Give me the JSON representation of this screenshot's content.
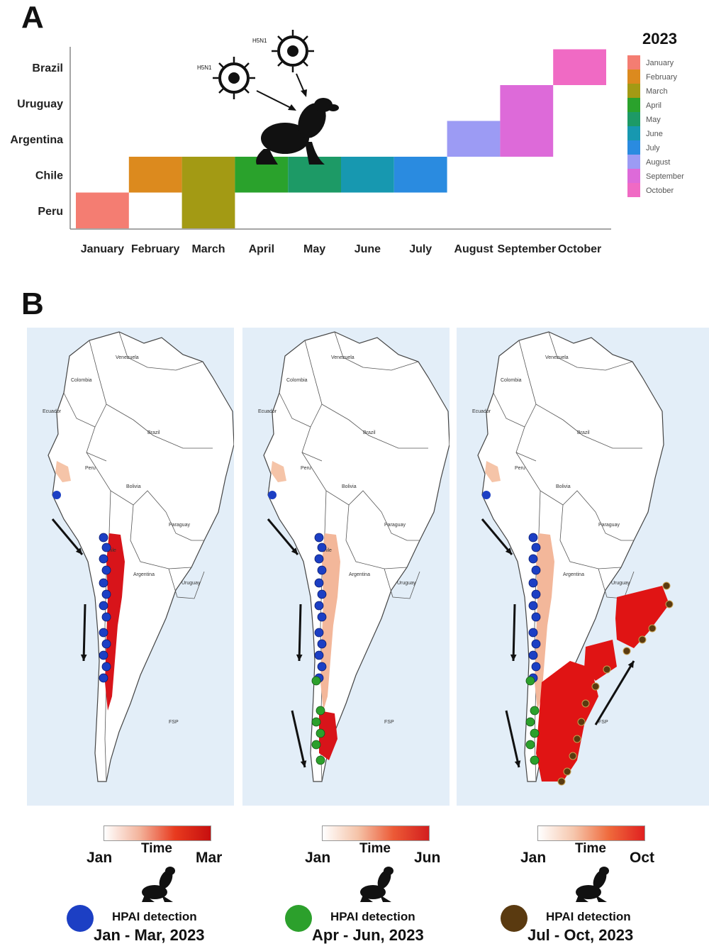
{
  "panels": {
    "a": "A",
    "b": "B"
  },
  "chart_data": {
    "type": "heatmap",
    "title": "",
    "x_categories": [
      "January",
      "February",
      "March",
      "April",
      "May",
      "June",
      "July",
      "August",
      "September",
      "October"
    ],
    "y_categories": [
      "Peru",
      "Chile",
      "Argentina",
      "Uruguay",
      "Brazil"
    ],
    "legend_title": "2023",
    "legend_position": "right",
    "grid": false,
    "cells": [
      {
        "country": "Peru",
        "month": "January"
      },
      {
        "country": "Peru",
        "month": "March"
      },
      {
        "country": "Chile",
        "month": "February"
      },
      {
        "country": "Chile",
        "month": "March"
      },
      {
        "country": "Chile",
        "month": "April"
      },
      {
        "country": "Chile",
        "month": "May"
      },
      {
        "country": "Chile",
        "month": "June"
      },
      {
        "country": "Chile",
        "month": "July"
      },
      {
        "country": "Argentina",
        "month": "August"
      },
      {
        "country": "Argentina",
        "month": "September"
      },
      {
        "country": "Uruguay",
        "month": "September"
      },
      {
        "country": "Brazil",
        "month": "October"
      }
    ],
    "month_colors": {
      "January": "#f47d72",
      "February": "#dc8a1e",
      "March": "#a39a14",
      "April": "#2aa22c",
      "May": "#1d9a66",
      "June": "#1798b0",
      "July": "#2a8be0",
      "August": "#9c9bf4",
      "September": "#dd6ad9",
      "October": "#f06ac4"
    },
    "virus_labels": [
      "H5N1",
      "H5N1"
    ]
  },
  "maps": [
    {
      "countries": [
        "Venezuela",
        "Colombia",
        "Ecuador",
        "Brazil",
        "Peru",
        "Bolivia",
        "Paraguay",
        "Chile",
        "Argentina",
        "Uruguay",
        "FSP"
      ],
      "legend": {
        "time_label": "Time",
        "start": "Jan",
        "end": "Mar",
        "detection": "HPAI detection",
        "period": "Jan - Mar, 2023",
        "dot_color": "#1c3fc4"
      }
    },
    {
      "countries": [
        "Venezuela",
        "Colombia",
        "Ecuador",
        "Brazil",
        "Peru",
        "Bolivia",
        "Paraguay",
        "Chile",
        "Argentina",
        "Uruguay",
        "FSP"
      ],
      "legend": {
        "time_label": "Time",
        "start": "Jan",
        "end": "Jun",
        "detection": "HPAI detection",
        "period": "Apr - Jun, 2023",
        "dot_color": "#2ca02c"
      }
    },
    {
      "countries": [
        "Venezuela",
        "Colombia",
        "Ecuador",
        "Brazil",
        "Peru",
        "Bolivia",
        "Paraguay",
        "Argentina",
        "Uruguay",
        "FSP"
      ],
      "legend": {
        "time_label": "Time",
        "start": "Jan",
        "end": "Oct",
        "detection": "HPAI detection",
        "period": "Jul - Oct, 2023",
        "dot_color": "#5a3a10"
      }
    }
  ]
}
